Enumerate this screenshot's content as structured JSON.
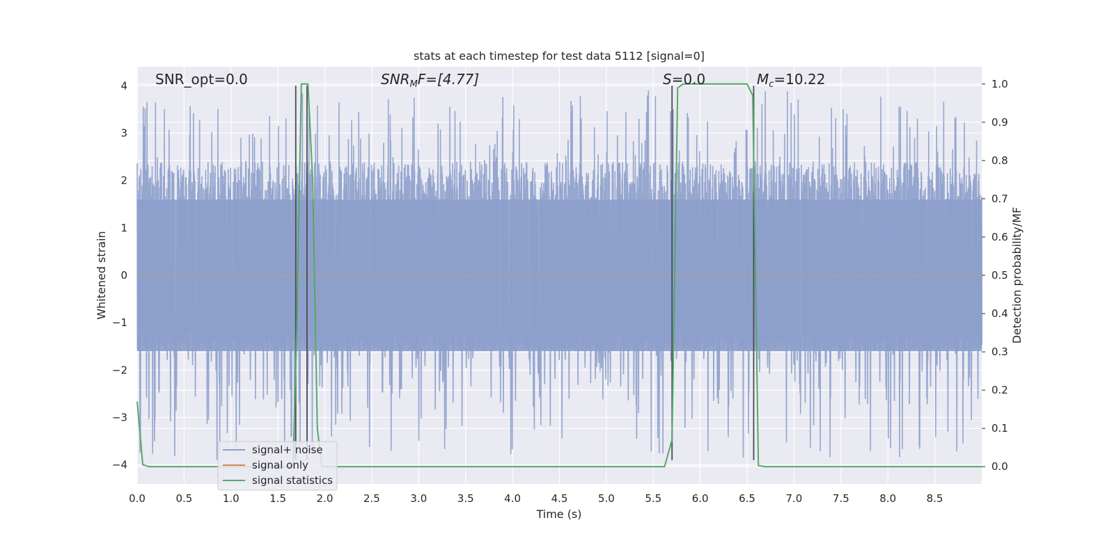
{
  "chart_data": {
    "type": "line",
    "title": "stats at each timestep for test data 5112 [signal=0]",
    "xlabel": "Time (s)",
    "ylabel_left": "Whitened strain",
    "ylabel_right": "Detection probability/MF",
    "xlim": [
      0.0,
      9.0
    ],
    "ylim_left": [
      -4.4,
      4.4
    ],
    "ylim_right": [
      -0.045,
      1.045
    ],
    "x_ticks": [
      0.0,
      0.5,
      1.0,
      1.5,
      2.0,
      2.5,
      3.0,
      3.5,
      4.0,
      4.5,
      5.0,
      5.5,
      6.0,
      6.5,
      7.0,
      7.5,
      8.0,
      8.5
    ],
    "x_tick_labels": [
      "0.0",
      "0.5",
      "1.0",
      "1.5",
      "2.0",
      "2.5",
      "3.0",
      "3.5",
      "4.0",
      "4.5",
      "5.0",
      "5.5",
      "6.0",
      "6.5",
      "7.0",
      "7.5",
      "8.0",
      "8.5"
    ],
    "y_ticks_left": [
      4,
      3,
      2,
      1,
      0,
      -1,
      -2,
      -3,
      -4
    ],
    "y_tick_labels_left": [
      "4",
      "3",
      "2",
      "1",
      "0",
      "−1",
      "−2",
      "−3",
      "−4"
    ],
    "y_ticks_right": [
      1.0,
      0.9,
      0.8,
      0.7,
      0.6,
      0.5,
      0.4,
      0.3,
      0.2,
      0.1,
      0.0
    ],
    "y_tick_labels_right": [
      "1.0",
      "0.9",
      "0.8",
      "0.7",
      "0.6",
      "0.5",
      "0.4",
      "0.3",
      "0.2",
      "0.1",
      "0.0"
    ],
    "grid": true,
    "legend": {
      "placement": "lower-left",
      "entries": [
        {
          "label": "signal+ noise",
          "color": "#8c9fcb"
        },
        {
          "label": "signal only",
          "color": "#dd8452"
        },
        {
          "label": "signal statistics",
          "color": "#55a868"
        }
      ]
    },
    "annotations": {
      "snr_opt": "SNR_opt=0.0",
      "snr_mf_main": "SNR",
      "snr_mf_sub": "M",
      "snr_mf_rest": "F=[4.77]",
      "s_main": "S",
      "s_rest": "=0.0",
      "mc_main": "M",
      "mc_sub": "c",
      "mc_rest": "=10.22"
    },
    "noise_series": {
      "name": "signal+ noise",
      "color": "#8c9fcb",
      "axis": "left",
      "seed": 5112,
      "n_samples": 1800,
      "x_range": [
        0.0,
        9.0
      ],
      "dense_band": [
        -1.6,
        1.6
      ],
      "typical_peak": 2.4,
      "max_abs": 3.9
    },
    "signal_only_series": {
      "name": "signal only",
      "color": "#dd8452",
      "axis": "left",
      "x": [
        0.0,
        9.0
      ],
      "y": [
        0.0,
        0.0
      ]
    },
    "statistic_series": {
      "name": "signal statistics",
      "color": "#55a868",
      "axis": "right",
      "x": [
        0.0,
        0.06,
        0.13,
        1.66,
        1.7,
        1.75,
        1.82,
        1.87,
        1.92,
        1.97,
        2.3,
        5.62,
        5.7,
        5.76,
        5.82,
        6.5,
        6.56,
        6.62,
        6.7,
        9.0
      ],
      "y": [
        0.17,
        0.005,
        0.0,
        0.0,
        0.35,
        1.0,
        1.0,
        0.75,
        0.1,
        0.0,
        0.0,
        0.0,
        0.07,
        0.99,
        1.0,
        1.0,
        0.97,
        0.003,
        0.0,
        0.0
      ]
    },
    "vertical_markers": {
      "color": "#4a4a55",
      "x": [
        1.69,
        1.81,
        5.7,
        6.57
      ],
      "y_range_left": [
        -3.9,
        4.0
      ]
    }
  }
}
